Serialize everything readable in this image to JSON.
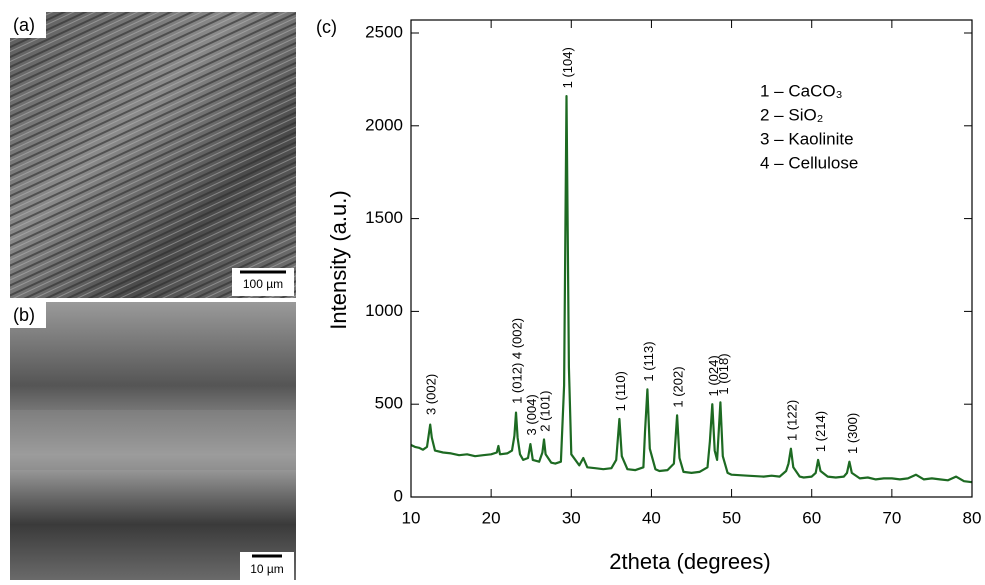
{
  "images": [
    {
      "label": "(a)",
      "scale_bar": "100 µm"
    },
    {
      "label": "(b)",
      "scale_bar": "10 µm"
    }
  ],
  "chart_data": {
    "type": "line",
    "panel_label": "(c)",
    "xlabel": "2theta (degrees)",
    "ylabel": "Intensity (a.u.)",
    "xlim": [
      10,
      80
    ],
    "ylim": [
      0,
      2570
    ],
    "xticks": [
      10,
      20,
      30,
      40,
      50,
      60,
      70,
      80
    ],
    "yticks": [
      0,
      500,
      1000,
      1500,
      2000,
      2500
    ],
    "legend_entries": [
      "1 – CaCO₃",
      "2 – SiO₂",
      "3 – Kaolinite",
      "4 – Cellulose"
    ],
    "x": [
      10,
      10.5,
      11,
      11.5,
      12,
      12.2,
      12.4,
      12.6,
      13,
      14,
      15,
      16,
      17,
      18,
      19,
      20,
      20.7,
      20.9,
      21.1,
      22,
      22.6,
      22.9,
      23.1,
      23.3,
      23.6,
      24,
      24.6,
      24.9,
      25.2,
      26,
      26.4,
      26.6,
      26.8,
      27.5,
      28,
      28.7,
      29.1,
      29.4,
      29.7,
      30,
      31,
      31.5,
      32,
      33,
      34,
      35,
      35.6,
      36,
      36.3,
      37,
      38,
      39,
      39.2,
      39.5,
      39.8,
      40.5,
      41,
      42,
      42.8,
      43.2,
      43.5,
      44,
      45,
      46,
      47,
      47.3,
      47.6,
      47.9,
      48.2,
      48.6,
      48.9,
      49.5,
      50,
      52,
      54,
      55,
      56,
      56.8,
      57.1,
      57.4,
      57.7,
      58.5,
      59,
      60,
      60.5,
      60.8,
      61.1,
      62,
      63,
      64,
      64.4,
      64.7,
      65,
      66,
      67,
      68,
      69,
      70,
      71,
      72,
      73,
      74,
      75,
      76,
      77,
      78,
      79,
      80
    ],
    "series": [
      {
        "color": "#1d6a22",
        "values": [
          280,
          270,
          265,
          255,
          270,
          330,
          390,
          320,
          250,
          240,
          235,
          225,
          230,
          220,
          225,
          230,
          240,
          275,
          230,
          235,
          250,
          330,
          455,
          320,
          230,
          200,
          210,
          285,
          200,
          190,
          240,
          310,
          230,
          185,
          180,
          190,
          600,
          2160,
          700,
          230,
          170,
          210,
          160,
          155,
          150,
          155,
          200,
          420,
          220,
          150,
          145,
          160,
          350,
          580,
          260,
          150,
          140,
          145,
          180,
          440,
          210,
          135,
          130,
          135,
          160,
          300,
          500,
          250,
          200,
          510,
          220,
          130,
          120,
          115,
          110,
          115,
          110,
          140,
          180,
          260,
          160,
          110,
          105,
          110,
          130,
          200,
          140,
          110,
          105,
          110,
          130,
          190,
          130,
          100,
          105,
          95,
          100,
          100,
          95,
          100,
          120,
          95,
          100,
          95,
          90,
          110,
          85,
          80
        ]
      }
    ],
    "annotations": [
      {
        "text": "3 (002)",
        "x": 12.4,
        "y": 420
      },
      {
        "text": "1 (012) 4 (002)",
        "x": 23.1,
        "y": 480
      },
      {
        "text": "3 (004)",
        "x": 24.9,
        "y": 310
      },
      {
        "text": "2 (101)",
        "x": 26.6,
        "y": 330
      },
      {
        "text": "1 (104)",
        "x": 29.4,
        "y": 2180
      },
      {
        "text": "1 (110)",
        "x": 36,
        "y": 440
      },
      {
        "text": "1 (113)",
        "x": 39.5,
        "y": 600
      },
      {
        "text": "1 (202)",
        "x": 43.2,
        "y": 460
      },
      {
        "text": "1 (024)",
        "x": 47.6,
        "y": 520
      },
      {
        "text": "1 (018)",
        "x": 48.9,
        "y": 530
      },
      {
        "text": "1 (122)",
        "x": 57.4,
        "y": 280
      },
      {
        "text": "1 (214)",
        "x": 61,
        "y": 220
      },
      {
        "text": "1 (300)",
        "x": 65,
        "y": 210
      }
    ]
  }
}
